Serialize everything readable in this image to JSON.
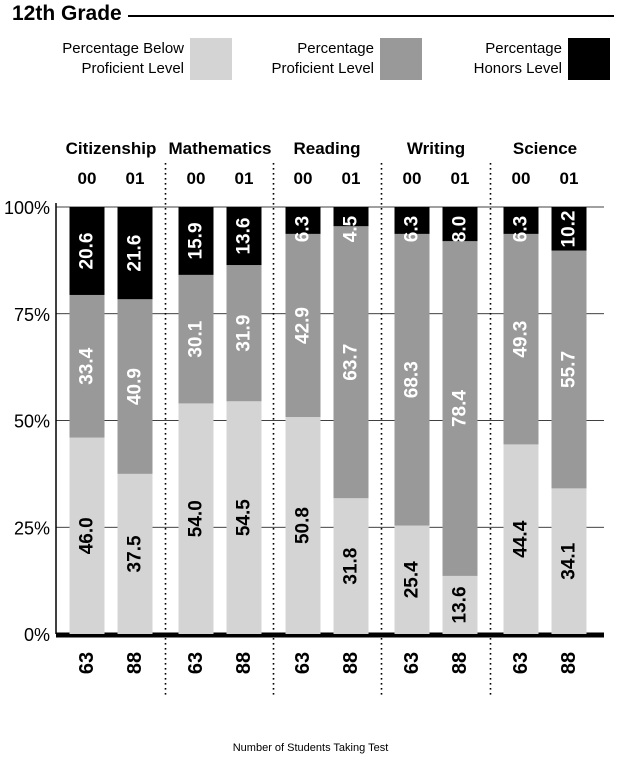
{
  "title": "12th Grade",
  "legend": [
    {
      "line1": "Percentage Below",
      "line2": "Proficient Level",
      "color": "#d4d4d4"
    },
    {
      "line1": "Percentage",
      "line2": "Proficient Level",
      "color": "#999999"
    },
    {
      "line1": "Percentage",
      "line2": "Honors Level",
      "color": "#000000"
    }
  ],
  "footnote": "Number of Students Taking Test",
  "chart_data": {
    "type": "bar",
    "stacked": true,
    "groups": [
      "Citizenship",
      "Mathematics",
      "Reading",
      "Writing",
      "Science"
    ],
    "years": [
      "00",
      "01"
    ],
    "y_ticks": [
      "0%",
      "25%",
      "50%",
      "75%",
      "100%"
    ],
    "ylim": [
      0,
      100
    ],
    "bars": [
      {
        "group": "Citizenship",
        "year": "00",
        "students": "63",
        "below": 46.0,
        "proficient": 33.4,
        "honors": 20.6
      },
      {
        "group": "Citizenship",
        "year": "01",
        "students": "88",
        "below": 37.5,
        "proficient": 40.9,
        "honors": 21.6
      },
      {
        "group": "Mathematics",
        "year": "00",
        "students": "63",
        "below": 54.0,
        "proficient": 30.1,
        "honors": 15.9
      },
      {
        "group": "Mathematics",
        "year": "01",
        "students": "88",
        "below": 54.5,
        "proficient": 31.9,
        "honors": 13.6
      },
      {
        "group": "Reading",
        "year": "00",
        "students": "63",
        "below": 50.8,
        "proficient": 42.9,
        "honors": 6.3
      },
      {
        "group": "Reading",
        "year": "01",
        "students": "88",
        "below": 31.8,
        "proficient": 63.7,
        "honors": 4.5
      },
      {
        "group": "Writing",
        "year": "00",
        "students": "63",
        "below": 25.4,
        "proficient": 68.3,
        "honors": 6.3
      },
      {
        "group": "Writing",
        "year": "01",
        "students": "88",
        "below": 13.6,
        "proficient": 78.4,
        "honors": 8.0
      },
      {
        "group": "Science",
        "year": "00",
        "students": "63",
        "below": 44.4,
        "proficient": 49.3,
        "honors": 6.3
      },
      {
        "group": "Science",
        "year": "01",
        "students": "88",
        "below": 34.1,
        "proficient": 55.7,
        "honors": 10.2
      }
    ],
    "colors": {
      "below": "#d4d4d4",
      "proficient": "#999999",
      "honors": "#000000"
    },
    "grid": true
  }
}
